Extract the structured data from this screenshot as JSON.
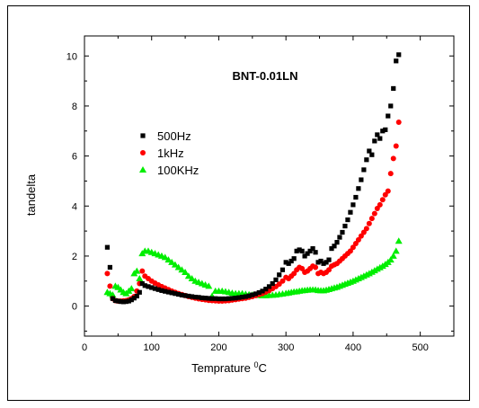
{
  "chart_data": {
    "type": "scatter",
    "title": "BNT-0.01LN",
    "xlabel": "Temprature ",
    "xlabel_unit_sup": "0",
    "xlabel_unit": "C",
    "ylabel": "tandelta",
    "xlim": [
      0,
      550
    ],
    "ylim": [
      -1.2,
      10.8
    ],
    "xticks": [
      0,
      100,
      200,
      300,
      400,
      500
    ],
    "yticks": [
      0,
      2,
      4,
      6,
      8,
      10
    ],
    "grid": false,
    "legend_position": "upper-left",
    "series": [
      {
        "name": "500Hz",
        "marker": "square",
        "color": "#000000",
        "x": [
          34,
          38,
          42,
          46,
          50,
          54,
          58,
          62,
          66,
          70,
          74,
          78,
          82,
          86,
          90,
          95,
          100,
          105,
          110,
          115,
          120,
          125,
          130,
          135,
          140,
          145,
          150,
          155,
          160,
          165,
          170,
          175,
          180,
          185,
          190,
          195,
          200,
          205,
          210,
          215,
          220,
          225,
          230,
          235,
          240,
          245,
          250,
          255,
          260,
          265,
          270,
          275,
          280,
          285,
          290,
          295,
          300,
          304,
          308,
          312,
          316,
          320,
          324,
          328,
          332,
          336,
          340,
          344,
          348,
          352,
          356,
          360,
          364,
          368,
          372,
          376,
          380,
          384,
          388,
          392,
          396,
          400,
          404,
          408,
          412,
          416,
          420,
          424,
          428,
          432,
          436,
          440,
          444,
          448,
          452,
          456,
          460,
          464,
          468
        ],
        "values": [
          2.35,
          1.55,
          0.3,
          0.22,
          0.2,
          0.18,
          0.17,
          0.18,
          0.2,
          0.25,
          0.32,
          0.4,
          0.55,
          0.9,
          0.82,
          0.78,
          0.74,
          0.7,
          0.66,
          0.62,
          0.59,
          0.56,
          0.53,
          0.5,
          0.47,
          0.44,
          0.42,
          0.4,
          0.38,
          0.36,
          0.35,
          0.33,
          0.32,
          0.31,
          0.3,
          0.3,
          0.29,
          0.29,
          0.29,
          0.3,
          0.31,
          0.32,
          0.34,
          0.36,
          0.38,
          0.41,
          0.45,
          0.49,
          0.54,
          0.6,
          0.68,
          0.78,
          0.9,
          1.05,
          1.25,
          1.45,
          1.75,
          1.7,
          1.8,
          1.9,
          2.2,
          2.25,
          2.2,
          2.0,
          2.1,
          2.2,
          2.3,
          2.15,
          1.75,
          1.8,
          1.7,
          1.75,
          1.85,
          2.3,
          2.4,
          2.55,
          2.75,
          2.95,
          3.2,
          3.45,
          3.75,
          4.05,
          4.35,
          4.7,
          5.05,
          5.45,
          5.85,
          6.2,
          6.05,
          6.6,
          6.85,
          6.7,
          7.0,
          7.05,
          7.6,
          8.0,
          8.7,
          9.8,
          10.05
        ]
      },
      {
        "name": "1kHz",
        "marker": "circle",
        "color": "#ff0000",
        "x": [
          34,
          38,
          42,
          46,
          50,
          54,
          58,
          62,
          66,
          70,
          74,
          78,
          82,
          86,
          90,
          95,
          100,
          105,
          110,
          115,
          120,
          125,
          130,
          135,
          140,
          145,
          150,
          155,
          160,
          165,
          170,
          175,
          180,
          185,
          190,
          195,
          200,
          205,
          210,
          215,
          220,
          225,
          230,
          235,
          240,
          245,
          250,
          255,
          260,
          265,
          270,
          275,
          280,
          285,
          290,
          295,
          300,
          304,
          308,
          312,
          316,
          320,
          324,
          328,
          332,
          336,
          340,
          344,
          348,
          352,
          356,
          360,
          364,
          368,
          372,
          376,
          380,
          384,
          388,
          392,
          396,
          400,
          404,
          408,
          412,
          416,
          420,
          424,
          428,
          432,
          436,
          440,
          444,
          448,
          452,
          456,
          460,
          464,
          468
        ],
        "values": [
          1.3,
          0.8,
          0.3,
          0.22,
          0.2,
          0.2,
          0.21,
          0.22,
          0.25,
          0.3,
          0.38,
          0.6,
          0.9,
          1.4,
          1.2,
          1.1,
          1.0,
          0.92,
          0.85,
          0.78,
          0.72,
          0.66,
          0.6,
          0.55,
          0.5,
          0.46,
          0.42,
          0.38,
          0.35,
          0.32,
          0.29,
          0.27,
          0.25,
          0.23,
          0.22,
          0.21,
          0.2,
          0.2,
          0.21,
          0.22,
          0.24,
          0.26,
          0.28,
          0.3,
          0.32,
          0.35,
          0.38,
          0.42,
          0.46,
          0.5,
          0.56,
          0.62,
          0.7,
          0.78,
          0.88,
          1.0,
          1.15,
          1.1,
          1.2,
          1.3,
          1.45,
          1.55,
          1.5,
          1.35,
          1.4,
          1.5,
          1.6,
          1.55,
          1.3,
          1.35,
          1.3,
          1.35,
          1.45,
          1.6,
          1.65,
          1.7,
          1.8,
          1.9,
          2.0,
          2.1,
          2.2,
          2.35,
          2.5,
          2.65,
          2.8,
          2.95,
          3.1,
          3.3,
          3.5,
          3.7,
          3.9,
          4.05,
          4.25,
          4.45,
          4.6,
          5.3,
          5.9,
          6.4,
          7.35
        ]
      },
      {
        "name": "100KHz",
        "marker": "triangle",
        "color": "#00ee00",
        "x": [
          34,
          38,
          42,
          46,
          50,
          54,
          58,
          62,
          66,
          70,
          74,
          78,
          82,
          86,
          90,
          95,
          100,
          105,
          110,
          115,
          120,
          125,
          130,
          135,
          140,
          145,
          150,
          155,
          160,
          165,
          170,
          175,
          180,
          185,
          190,
          195,
          200,
          205,
          210,
          215,
          220,
          225,
          230,
          235,
          240,
          245,
          250,
          255,
          260,
          265,
          270,
          275,
          280,
          285,
          290,
          295,
          300,
          304,
          308,
          312,
          316,
          320,
          324,
          328,
          332,
          336,
          340,
          344,
          348,
          352,
          356,
          360,
          364,
          368,
          372,
          376,
          380,
          384,
          388,
          392,
          396,
          400,
          404,
          408,
          412,
          416,
          420,
          424,
          428,
          432,
          436,
          440,
          444,
          448,
          452,
          456,
          460,
          464,
          468
        ],
        "values": [
          0.55,
          0.5,
          0.45,
          0.8,
          0.75,
          0.65,
          0.55,
          0.5,
          0.6,
          0.7,
          1.3,
          1.4,
          1.1,
          2.1,
          2.2,
          2.2,
          2.15,
          2.1,
          2.05,
          2.0,
          1.95,
          1.85,
          1.75,
          1.65,
          1.55,
          1.45,
          1.35,
          1.2,
          1.1,
          1.0,
          0.95,
          0.9,
          0.85,
          0.8,
          0.4,
          0.6,
          0.6,
          0.6,
          0.58,
          0.55,
          0.52,
          0.5,
          0.5,
          0.5,
          0.48,
          0.46,
          0.45,
          0.44,
          0.43,
          0.42,
          0.42,
          0.43,
          0.44,
          0.45,
          0.47,
          0.49,
          0.51,
          0.53,
          0.55,
          0.57,
          0.58,
          0.6,
          0.62,
          0.63,
          0.64,
          0.65,
          0.65,
          0.65,
          0.63,
          0.62,
          0.62,
          0.64,
          0.67,
          0.7,
          0.73,
          0.76,
          0.8,
          0.84,
          0.88,
          0.92,
          0.96,
          1.0,
          1.05,
          1.1,
          1.15,
          1.2,
          1.25,
          1.3,
          1.36,
          1.42,
          1.48,
          1.54,
          1.6,
          1.67,
          1.75,
          1.85,
          2.0,
          2.2,
          2.6
        ]
      }
    ]
  }
}
